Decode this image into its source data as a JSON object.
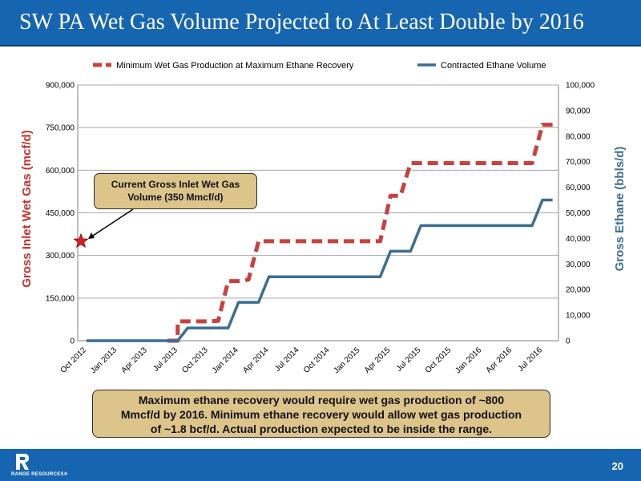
{
  "slide": {
    "title": "SW PA Wet Gas Volume Projected to At Least Double by 2016",
    "page_number": "20",
    "logo_text": "RANGE RESOURCES®"
  },
  "callout": {
    "line1": "Current Gross Inlet Wet Gas",
    "line2": "Volume (350 Mmcf/d)"
  },
  "summary": {
    "line1": "Maximum ethane recovery would require wet gas production of ~800",
    "line2": "Mmcf/d by 2016.  Minimum ethane recovery would allow wet gas production",
    "line3": "of ~1.8 bcf/d.  Actual production expected to be inside the range."
  },
  "colors": {
    "brand_blue": "#1665b0",
    "wet_gas_series": "#c9403f",
    "ethane_series": "#3a6f93",
    "callout_fill": "#dcc48a",
    "marker": "#e02020"
  },
  "chart_data": {
    "type": "line",
    "categories": [
      "Oct 2012",
      "Jan 2013",
      "Apr 2013",
      "Jul 2013",
      "Oct 2013",
      "Jan 2014",
      "Apr 2014",
      "Jul 2014",
      "Oct 2014",
      "Jan 2015",
      "Apr 2015",
      "Jul 2015",
      "Oct 2015",
      "Jan 2016",
      "Apr 2016",
      "Jul 2016"
    ],
    "ylabel": "Gross Inlet Wet Gas (mcf/d)",
    "y2label": "Gross Ethane (bbls/d)",
    "ylim": [
      0,
      900000
    ],
    "y2lim": [
      0,
      100000
    ],
    "y_ticks": [
      "0",
      "150,000",
      "300,000",
      "450,000",
      "600,000",
      "750,000",
      "900,000"
    ],
    "y2_ticks": [
      "0",
      "10,000",
      "20,000",
      "30,000",
      "40,000",
      "50,000",
      "60,000",
      "70,000",
      "80,000",
      "90,000",
      "100,000"
    ],
    "legend_position": "top",
    "grid": "horizontal",
    "series": [
      {
        "name": "Minimum Wet Gas Production at Maximum Ethane Recovery",
        "axis": "left",
        "style": "dashed",
        "points": [
          [
            2.66,
            0
          ],
          [
            3.0,
            0
          ],
          [
            3.0,
            68000
          ],
          [
            3.66,
            68000
          ],
          [
            4.0,
            68000
          ],
          [
            4.33,
            70000
          ],
          [
            4.66,
            210000
          ],
          [
            5.0,
            210000
          ],
          [
            5.33,
            215000
          ],
          [
            5.66,
            350000
          ],
          [
            6.0,
            350000
          ],
          [
            7.0,
            350000
          ],
          [
            8.0,
            350000
          ],
          [
            9.0,
            350000
          ],
          [
            9.66,
            350000
          ],
          [
            10.0,
            510000
          ],
          [
            10.33,
            510000
          ],
          [
            10.66,
            625000
          ],
          [
            11.0,
            625000
          ],
          [
            12.0,
            625000
          ],
          [
            13.0,
            625000
          ],
          [
            14.0,
            625000
          ],
          [
            14.66,
            625000
          ],
          [
            15.0,
            760000
          ],
          [
            15.33,
            760000
          ]
        ]
      },
      {
        "name": "Contracted Ethane Volume",
        "axis": "right",
        "style": "solid",
        "points": [
          [
            0,
            0
          ],
          [
            3.0,
            0
          ],
          [
            3.33,
            5000
          ],
          [
            4.66,
            5000
          ],
          [
            5.0,
            15000
          ],
          [
            5.66,
            15000
          ],
          [
            6.0,
            25000
          ],
          [
            7.0,
            25000
          ],
          [
            8.0,
            25000
          ],
          [
            9.0,
            25000
          ],
          [
            9.66,
            25000
          ],
          [
            10.0,
            35000
          ],
          [
            10.66,
            35000
          ],
          [
            11.0,
            45000
          ],
          [
            12.0,
            45000
          ],
          [
            13.0,
            45000
          ],
          [
            14.0,
            45000
          ],
          [
            14.66,
            45000
          ],
          [
            15.0,
            55000
          ],
          [
            15.33,
            55000
          ]
        ]
      }
    ],
    "annotation_point": {
      "x": 0,
      "y": 350000
    }
  }
}
